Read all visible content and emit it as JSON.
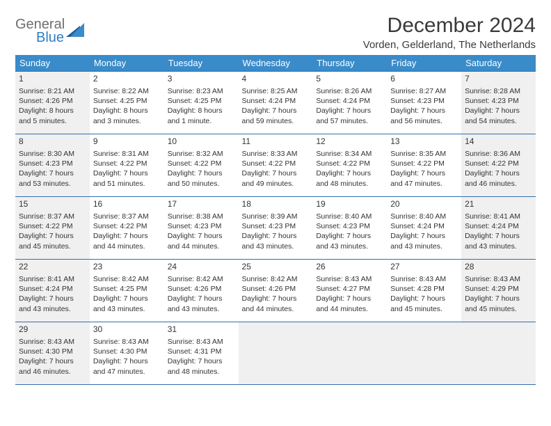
{
  "logo": {
    "line1": "General",
    "line2": "Blue"
  },
  "title": "December 2024",
  "subtitle": "Vorden, Gelderland, The Netherlands",
  "headers": [
    "Sunday",
    "Monday",
    "Tuesday",
    "Wednesday",
    "Thursday",
    "Friday",
    "Saturday"
  ],
  "colors": {
    "header_bg": "#3a8bc9",
    "header_fg": "#ffffff",
    "border": "#2f6fa8",
    "shaded_bg": "#f0f0f0",
    "text": "#333333",
    "logo_gray": "#6e6e6e",
    "logo_blue": "#2f7ec2"
  },
  "weeks": [
    [
      {
        "n": "1",
        "shaded": true,
        "sr": "Sunrise: 8:21 AM",
        "ss": "Sunset: 4:26 PM",
        "d1": "Daylight: 8 hours",
        "d2": "and 5 minutes."
      },
      {
        "n": "2",
        "sr": "Sunrise: 8:22 AM",
        "ss": "Sunset: 4:25 PM",
        "d1": "Daylight: 8 hours",
        "d2": "and 3 minutes."
      },
      {
        "n": "3",
        "sr": "Sunrise: 8:23 AM",
        "ss": "Sunset: 4:25 PM",
        "d1": "Daylight: 8 hours",
        "d2": "and 1 minute."
      },
      {
        "n": "4",
        "sr": "Sunrise: 8:25 AM",
        "ss": "Sunset: 4:24 PM",
        "d1": "Daylight: 7 hours",
        "d2": "and 59 minutes."
      },
      {
        "n": "5",
        "sr": "Sunrise: 8:26 AM",
        "ss": "Sunset: 4:24 PM",
        "d1": "Daylight: 7 hours",
        "d2": "and 57 minutes."
      },
      {
        "n": "6",
        "sr": "Sunrise: 8:27 AM",
        "ss": "Sunset: 4:23 PM",
        "d1": "Daylight: 7 hours",
        "d2": "and 56 minutes."
      },
      {
        "n": "7",
        "shaded": true,
        "sr": "Sunrise: 8:28 AM",
        "ss": "Sunset: 4:23 PM",
        "d1": "Daylight: 7 hours",
        "d2": "and 54 minutes."
      }
    ],
    [
      {
        "n": "8",
        "shaded": true,
        "sr": "Sunrise: 8:30 AM",
        "ss": "Sunset: 4:23 PM",
        "d1": "Daylight: 7 hours",
        "d2": "and 53 minutes."
      },
      {
        "n": "9",
        "sr": "Sunrise: 8:31 AM",
        "ss": "Sunset: 4:22 PM",
        "d1": "Daylight: 7 hours",
        "d2": "and 51 minutes."
      },
      {
        "n": "10",
        "sr": "Sunrise: 8:32 AM",
        "ss": "Sunset: 4:22 PM",
        "d1": "Daylight: 7 hours",
        "d2": "and 50 minutes."
      },
      {
        "n": "11",
        "sr": "Sunrise: 8:33 AM",
        "ss": "Sunset: 4:22 PM",
        "d1": "Daylight: 7 hours",
        "d2": "and 49 minutes."
      },
      {
        "n": "12",
        "sr": "Sunrise: 8:34 AM",
        "ss": "Sunset: 4:22 PM",
        "d1": "Daylight: 7 hours",
        "d2": "and 48 minutes."
      },
      {
        "n": "13",
        "sr": "Sunrise: 8:35 AM",
        "ss": "Sunset: 4:22 PM",
        "d1": "Daylight: 7 hours",
        "d2": "and 47 minutes."
      },
      {
        "n": "14",
        "shaded": true,
        "sr": "Sunrise: 8:36 AM",
        "ss": "Sunset: 4:22 PM",
        "d1": "Daylight: 7 hours",
        "d2": "and 46 minutes."
      }
    ],
    [
      {
        "n": "15",
        "shaded": true,
        "sr": "Sunrise: 8:37 AM",
        "ss": "Sunset: 4:22 PM",
        "d1": "Daylight: 7 hours",
        "d2": "and 45 minutes."
      },
      {
        "n": "16",
        "sr": "Sunrise: 8:37 AM",
        "ss": "Sunset: 4:22 PM",
        "d1": "Daylight: 7 hours",
        "d2": "and 44 minutes."
      },
      {
        "n": "17",
        "sr": "Sunrise: 8:38 AM",
        "ss": "Sunset: 4:23 PM",
        "d1": "Daylight: 7 hours",
        "d2": "and 44 minutes."
      },
      {
        "n": "18",
        "sr": "Sunrise: 8:39 AM",
        "ss": "Sunset: 4:23 PM",
        "d1": "Daylight: 7 hours",
        "d2": "and 43 minutes."
      },
      {
        "n": "19",
        "sr": "Sunrise: 8:40 AM",
        "ss": "Sunset: 4:23 PM",
        "d1": "Daylight: 7 hours",
        "d2": "and 43 minutes."
      },
      {
        "n": "20",
        "sr": "Sunrise: 8:40 AM",
        "ss": "Sunset: 4:24 PM",
        "d1": "Daylight: 7 hours",
        "d2": "and 43 minutes."
      },
      {
        "n": "21",
        "shaded": true,
        "sr": "Sunrise: 8:41 AM",
        "ss": "Sunset: 4:24 PM",
        "d1": "Daylight: 7 hours",
        "d2": "and 43 minutes."
      }
    ],
    [
      {
        "n": "22",
        "shaded": true,
        "sr": "Sunrise: 8:41 AM",
        "ss": "Sunset: 4:24 PM",
        "d1": "Daylight: 7 hours",
        "d2": "and 43 minutes."
      },
      {
        "n": "23",
        "sr": "Sunrise: 8:42 AM",
        "ss": "Sunset: 4:25 PM",
        "d1": "Daylight: 7 hours",
        "d2": "and 43 minutes."
      },
      {
        "n": "24",
        "sr": "Sunrise: 8:42 AM",
        "ss": "Sunset: 4:26 PM",
        "d1": "Daylight: 7 hours",
        "d2": "and 43 minutes."
      },
      {
        "n": "25",
        "sr": "Sunrise: 8:42 AM",
        "ss": "Sunset: 4:26 PM",
        "d1": "Daylight: 7 hours",
        "d2": "and 44 minutes."
      },
      {
        "n": "26",
        "sr": "Sunrise: 8:43 AM",
        "ss": "Sunset: 4:27 PM",
        "d1": "Daylight: 7 hours",
        "d2": "and 44 minutes."
      },
      {
        "n": "27",
        "sr": "Sunrise: 8:43 AM",
        "ss": "Sunset: 4:28 PM",
        "d1": "Daylight: 7 hours",
        "d2": "and 45 minutes."
      },
      {
        "n": "28",
        "shaded": true,
        "sr": "Sunrise: 8:43 AM",
        "ss": "Sunset: 4:29 PM",
        "d1": "Daylight: 7 hours",
        "d2": "and 45 minutes."
      }
    ],
    [
      {
        "n": "29",
        "shaded": true,
        "sr": "Sunrise: 8:43 AM",
        "ss": "Sunset: 4:30 PM",
        "d1": "Daylight: 7 hours",
        "d2": "and 46 minutes."
      },
      {
        "n": "30",
        "sr": "Sunrise: 8:43 AM",
        "ss": "Sunset: 4:30 PM",
        "d1": "Daylight: 7 hours",
        "d2": "and 47 minutes."
      },
      {
        "n": "31",
        "sr": "Sunrise: 8:43 AM",
        "ss": "Sunset: 4:31 PM",
        "d1": "Daylight: 7 hours",
        "d2": "and 48 minutes."
      },
      {
        "empty": true
      },
      {
        "empty": true
      },
      {
        "empty": true
      },
      {
        "empty": true
      }
    ]
  ]
}
